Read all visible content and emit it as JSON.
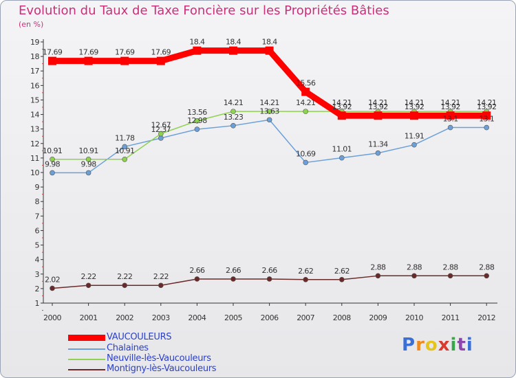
{
  "title": "Evolution du Taux de Taxe Foncière sur les Propriétés Bâties",
  "subtitle": "(en %)",
  "logo": "Proxiti",
  "chart_data": {
    "type": "line",
    "title": "Evolution du Taux de Taxe Foncière sur les Propriétés Bâties",
    "ylabel": "(en %)",
    "xlabel": "",
    "x": [
      "2000",
      "2001",
      "2002",
      "2003",
      "2004",
      "2005",
      "2006",
      "2007",
      "2008",
      "2009",
      "2010",
      "2011",
      "2012"
    ],
    "ylim": [
      1,
      19
    ],
    "yticks": [
      1,
      2,
      3,
      4,
      5,
      6,
      7,
      8,
      9,
      10,
      11,
      12,
      13,
      14,
      15,
      16,
      17,
      18,
      19
    ],
    "grid": false,
    "legend_position": "bottom-left",
    "series": [
      {
        "name": "VAUCOULEURS",
        "color": "#ff0000",
        "values": [
          17.69,
          17.69,
          17.69,
          17.69,
          18.4,
          18.4,
          18.4,
          15.56,
          13.92,
          13.92,
          13.92,
          13.92,
          13.92
        ],
        "labels": [
          "17.69",
          "17.69",
          "17.69",
          "17.69",
          "18.4",
          "18.4",
          "18.4",
          "15.56",
          "13.92",
          "13.92",
          "13.92",
          "13.92",
          "13.92"
        ]
      },
      {
        "name": "Chalaines",
        "color": "#6a9fd8",
        "values": [
          9.98,
          9.98,
          11.78,
          12.37,
          12.98,
          13.23,
          13.63,
          10.69,
          11.01,
          11.34,
          11.91,
          13.1,
          13.1
        ],
        "labels": [
          "9.98",
          "9.98",
          "11.78",
          "12.37",
          "12.98",
          "13.23",
          "13.63",
          "10.69",
          "11.01",
          "11.34",
          "11.91",
          "13.1",
          "13.1"
        ]
      },
      {
        "name": "Neuville-lès-Vaucouleurs",
        "color": "#8fd24f",
        "values": [
          10.91,
          10.91,
          10.91,
          12.67,
          13.56,
          14.21,
          14.21,
          14.21,
          14.21,
          14.21,
          14.21,
          14.21,
          14.21
        ],
        "labels": [
          "10.91",
          "10.91",
          "10.91",
          "12.67",
          "13.56",
          "14.21",
          "14.21",
          "14.21",
          "14.21",
          "14.21",
          "14.21",
          "14.21",
          "14.21"
        ]
      },
      {
        "name": "Montigny-lès-Vaucouleurs",
        "color": "#6b2a2a",
        "values": [
          2.02,
          2.22,
          2.22,
          2.22,
          2.66,
          2.66,
          2.66,
          2.62,
          2.62,
          2.88,
          2.88,
          2.88,
          2.88
        ],
        "labels": [
          "2.02",
          "2.22",
          "2.22",
          "2.22",
          "2.66",
          "2.66",
          "2.66",
          "2.62",
          "2.62",
          "2.88",
          "2.88",
          "2.88",
          "2.88"
        ]
      }
    ]
  }
}
